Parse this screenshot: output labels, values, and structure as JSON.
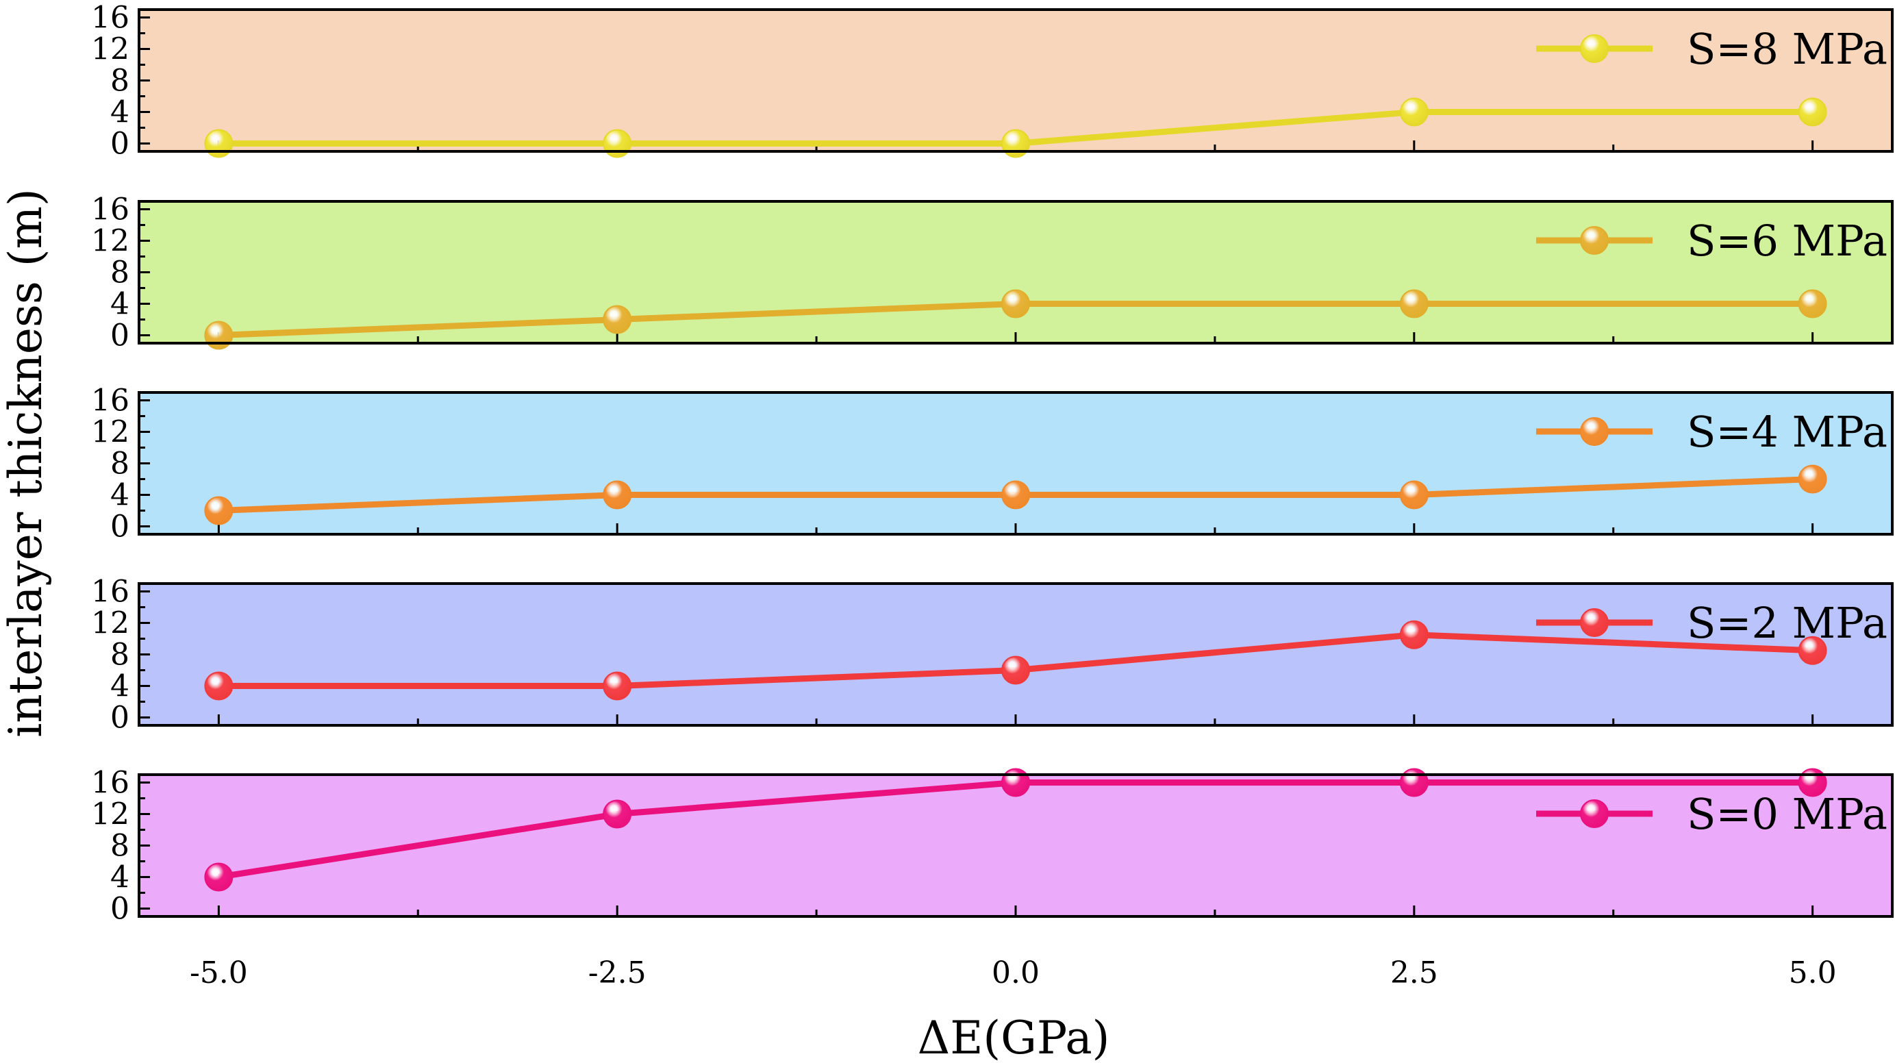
{
  "chart_data": {
    "type": "line",
    "layout": "stacked-panels",
    "xlabel": "ΔE(GPa)",
    "ylabel": "interlayer thickness (m)",
    "x": [
      -5.0,
      -2.5,
      0.0,
      2.5,
      5.0
    ],
    "x_tick_labels": [
      "-5.0",
      "-2.5",
      "0.0",
      "2.5",
      "5.0"
    ],
    "xlim": [
      -5.5,
      5.5
    ],
    "ylim": [
      -1,
      17
    ],
    "y_tick_labels": [
      "0",
      "4",
      "8",
      "12",
      "16"
    ],
    "series": [
      {
        "name": "S=8 MPa",
        "values": [
          0,
          0,
          0,
          4,
          4
        ],
        "line_color": "#e6d82b",
        "marker_color": "#ede336",
        "bg_color": "#f8d6bb"
      },
      {
        "name": "S=6 MPa",
        "values": [
          0,
          2,
          4,
          4,
          4
        ],
        "line_color": "#e1ae2d",
        "marker_color": "#e8b339",
        "bg_color": "#d1f29b"
      },
      {
        "name": "S=4 MPa",
        "values": [
          2,
          4,
          4,
          4,
          6
        ],
        "line_color": "#ef8a2c",
        "marker_color": "#f38e33",
        "bg_color": "#b5e2fb"
      },
      {
        "name": "S=2 MPa",
        "values": [
          4,
          4,
          6,
          10.5,
          8.5
        ],
        "line_color": "#f03a3c",
        "marker_color": "#f5424a",
        "bg_color": "#bac3fc"
      },
      {
        "name": "S=0 MPa",
        "values": [
          4,
          12,
          16,
          16,
          16
        ],
        "line_color": "#ea107e",
        "marker_color": "#ef1a86",
        "bg_color": "#ebabfa"
      }
    ]
  }
}
